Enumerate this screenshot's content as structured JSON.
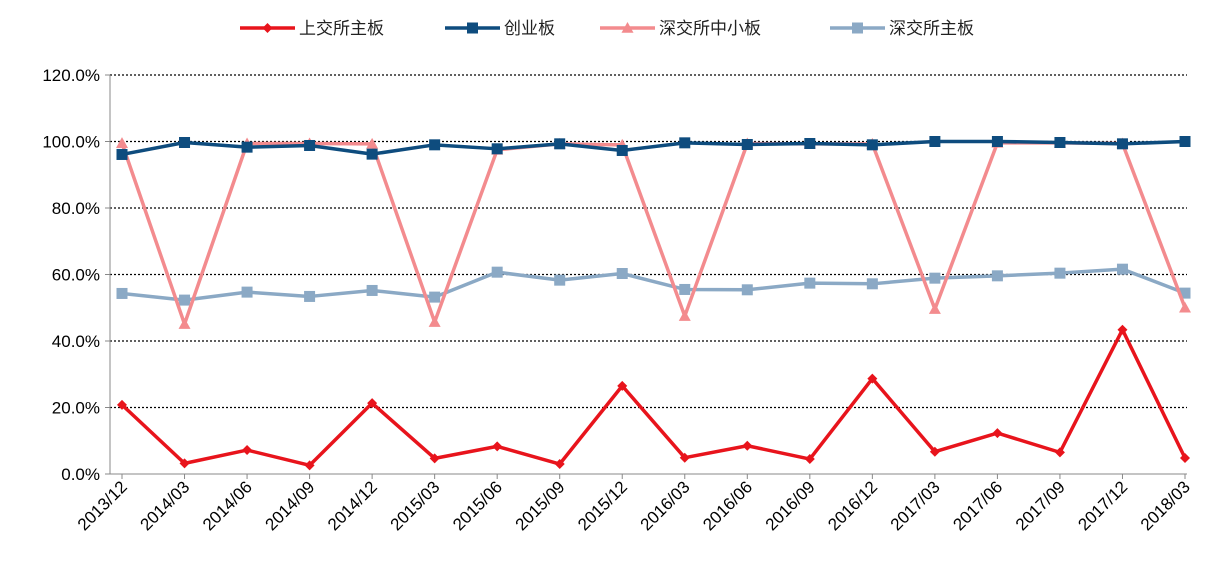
{
  "chart_data": {
    "type": "line",
    "title": "",
    "xlabel": "",
    "ylabel": "",
    "ylim": [
      0,
      120
    ],
    "y_ticks": [
      "0.0%",
      "20.0%",
      "40.0%",
      "60.0%",
      "80.0%",
      "100.0%",
      "120.0%"
    ],
    "y_tick_values": [
      0,
      20,
      40,
      60,
      80,
      100,
      120
    ],
    "grid": "horizontal-dotted",
    "legend_position": "top",
    "categories": [
      "2013/12",
      "2014/03",
      "2014/06",
      "2014/09",
      "2014/12",
      "2015/03",
      "2015/06",
      "2015/09",
      "2015/12",
      "2016/03",
      "2016/06",
      "2016/09",
      "2016/12",
      "2017/03",
      "2017/06",
      "2017/09",
      "2017/12",
      "2018/03"
    ],
    "series": [
      {
        "name": "上交所主板",
        "color": "#E8141C",
        "marker": "diamond",
        "values": [
          20.8,
          3.2,
          7.2,
          2.6,
          21.3,
          4.7,
          8.3,
          3.0,
          26.5,
          4.9,
          8.5,
          4.5,
          28.7,
          6.7,
          12.3,
          6.5,
          43.4,
          4.8
        ]
      },
      {
        "name": "创业板",
        "color": "#0E4C7E",
        "marker": "square",
        "values": [
          96.1,
          99.7,
          98.3,
          98.8,
          96.2,
          99.0,
          97.8,
          99.3,
          97.3,
          99.6,
          99.1,
          99.4,
          99.0,
          100.0,
          100.0,
          99.7,
          99.3,
          100.0
        ]
      },
      {
        "name": "深交所中小板",
        "color": "#F38B8E",
        "marker": "triangle",
        "values": [
          99.5,
          45.1,
          99.4,
          99.4,
          99.3,
          45.7,
          97.5,
          99.3,
          99.0,
          47.5,
          99.4,
          99.3,
          99.3,
          49.6,
          99.6,
          99.6,
          99.4,
          50.0
        ]
      },
      {
        "name": "深交所主板",
        "color": "#8BA9C5",
        "marker": "square",
        "values": [
          54.3,
          52.3,
          54.7,
          53.4,
          55.2,
          53.2,
          60.7,
          58.3,
          60.3,
          55.5,
          55.4,
          57.4,
          57.2,
          58.9,
          59.6,
          60.4,
          61.6,
          54.4
        ]
      }
    ]
  }
}
